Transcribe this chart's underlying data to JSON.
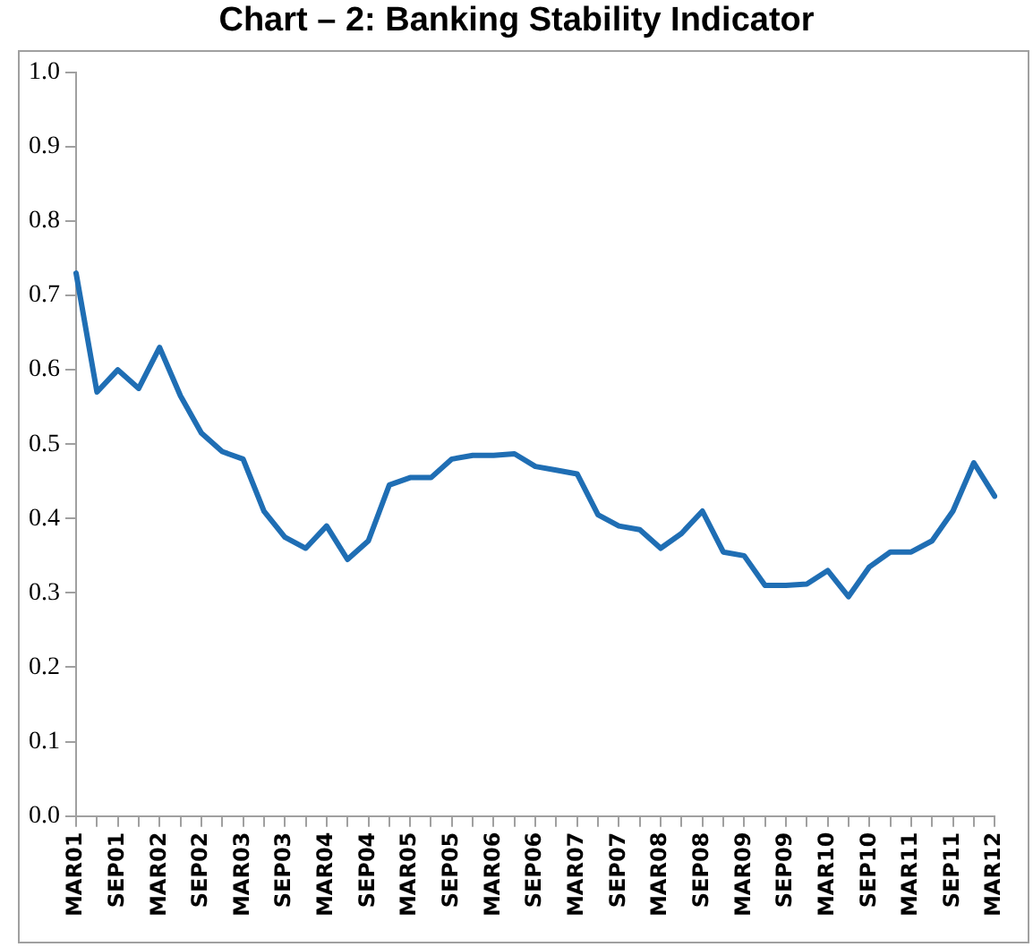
{
  "chart_data": {
    "type": "line",
    "title": "Chart – 2: Banking Stability Indicator",
    "categories": [
      "MAR01",
      null,
      "SEP01",
      null,
      "MAR02",
      null,
      "SEP02",
      null,
      "MAR03",
      null,
      "SEP03",
      null,
      "MAR04",
      null,
      "SEP04",
      null,
      "MAR05",
      null,
      "SEP05",
      null,
      "MAR06",
      null,
      "SEP06",
      null,
      "MAR07",
      null,
      "SEP07",
      null,
      "MAR08",
      null,
      "SEP08",
      null,
      "MAR09",
      null,
      "SEP09",
      null,
      "MAR10",
      null,
      "SEP10",
      null,
      "MAR11",
      null,
      "SEP11",
      null,
      "MAR12"
    ],
    "series": [
      {
        "color": "#1f6eb4",
        "values": [
          0.73,
          0.57,
          0.6,
          0.575,
          0.63,
          0.565,
          0.515,
          0.49,
          0.48,
          0.41,
          0.375,
          0.36,
          0.39,
          0.345,
          0.37,
          0.445,
          0.455,
          0.455,
          0.48,
          0.485,
          0.485,
          0.487,
          0.47,
          0.465,
          0.46,
          0.405,
          0.39,
          0.385,
          0.36,
          0.38,
          0.41,
          0.355,
          0.35,
          0.31,
          0.31,
          0.312,
          0.33,
          0.295,
          0.335,
          0.355,
          0.355,
          0.37,
          0.41,
          0.475,
          0.43
        ]
      }
    ],
    "ylim": [
      0,
      1
    ],
    "yticks": [
      {
        "value": 0,
        "label": "0.0"
      },
      {
        "value": 0.1,
        "label": "0.1"
      },
      {
        "value": 0.2,
        "label": "0.2"
      },
      {
        "value": 0.3,
        "label": "0.3"
      },
      {
        "value": 0.4,
        "label": "0.4"
      },
      {
        "value": 0.5,
        "label": "0.5"
      },
      {
        "value": 0.6,
        "label": "0.6"
      },
      {
        "value": 0.7,
        "label": "0.7"
      },
      {
        "value": 0.8,
        "label": "0.8"
      },
      {
        "value": 0.9,
        "label": "0.9"
      },
      {
        "value": 1,
        "label": "1.0"
      }
    ],
    "grid": false,
    "legend": false,
    "marker": "none",
    "line_style": "solid"
  }
}
